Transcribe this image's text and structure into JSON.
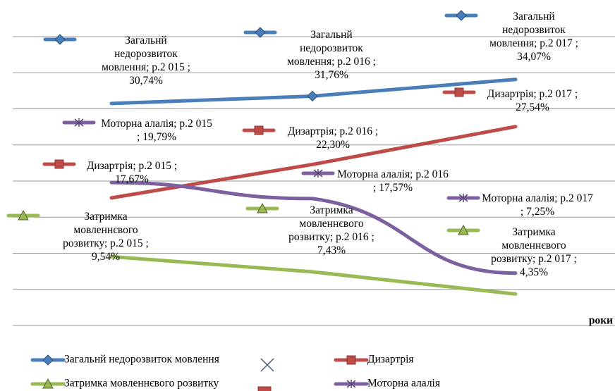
{
  "chart_data": {
    "type": "line",
    "categories": [
      "р.2 015",
      "р.2 016",
      "р.2 017"
    ],
    "x_label": "роки",
    "ylim": [
      0,
      40
    ],
    "yticks": [
      0,
      5,
      10,
      15,
      20,
      25,
      30,
      35,
      40
    ],
    "grid": true,
    "series": [
      {
        "name": "Загальнй недорозвиток мовлення",
        "color": "#4a7ebb",
        "values": [
          30.74,
          31.76,
          34.07
        ],
        "value_labels": [
          "Загальнй недорозвиток мовлення; р.2 015 ; 30,74%",
          "Загальнй недорозвиток мовлення; р.2 016 ; 31,76%",
          "Загальнй недорозвиток мовлення; р.2 017 ; 34,07%"
        ]
      },
      {
        "name": "Дизартрія",
        "color": "#be4b48",
        "values": [
          17.67,
          22.3,
          27.54
        ],
        "value_labels": [
          "Дизартрія; р.2 015 ; 17,67%",
          "Дизартрія; р.2 016 ; 22,30%",
          "Дизартрія; р.2 017 ; 27,54%"
        ]
      },
      {
        "name": "Моторна алалія",
        "color": "#7d60a0",
        "values": [
          19.79,
          17.57,
          7.25
        ],
        "value_labels": [
          "Моторна алалія; р.2 015 ; 19,79%",
          "Моторна алалія; р.2 016 ; 17,57%",
          "Моторна алалія; р.2 017 ; 7,25%"
        ]
      },
      {
        "name": "Затримка мовленнєвого розвитку",
        "color": "#98b954",
        "values": [
          9.54,
          7.43,
          4.35
        ],
        "value_labels": [
          "Затримка мовленнєвого розвитку; р.2 015 ; 9,54%",
          "Затримка мовленнєвого розвитку; р.2 016 ; 7,43%",
          "Затримка мовленнєвого розвитку; р.2 017 ; 4,35%"
        ]
      }
    ]
  }
}
